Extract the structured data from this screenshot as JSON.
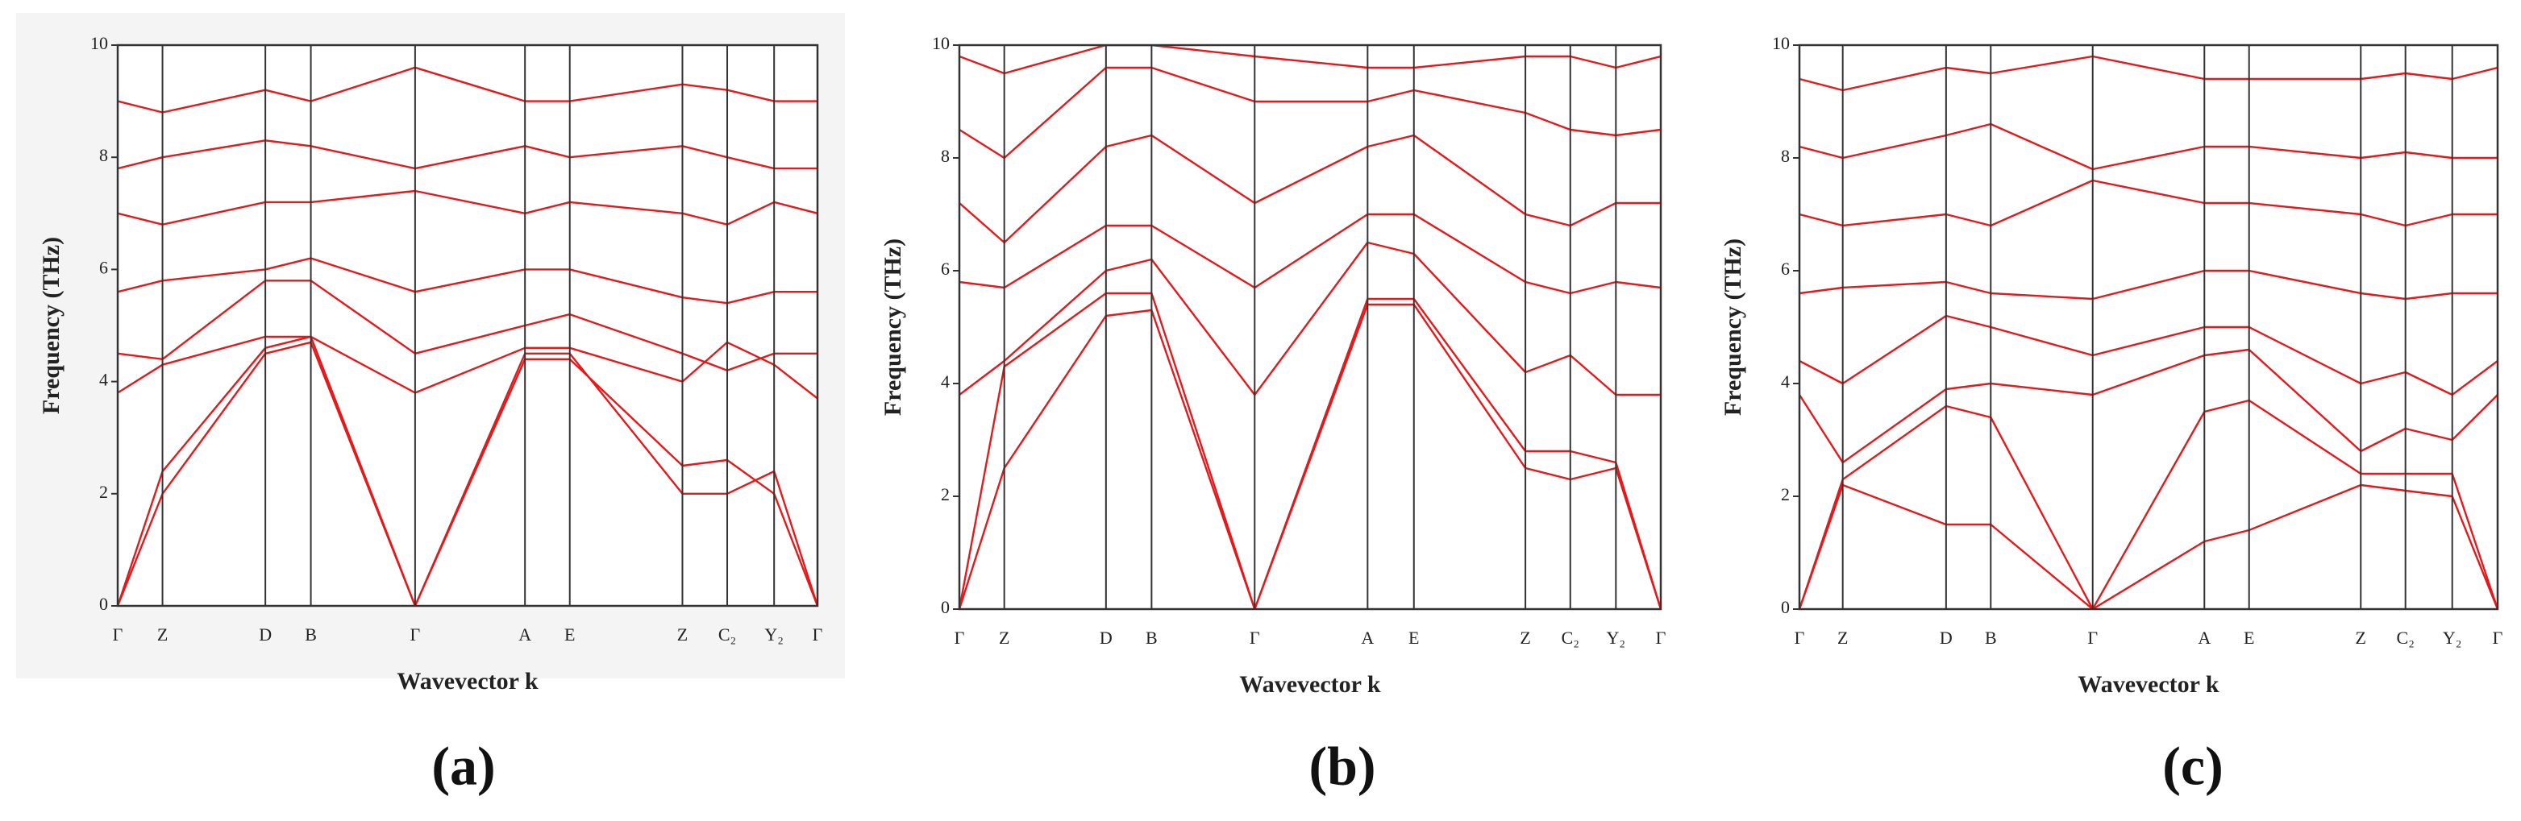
{
  "chart_data": [
    {
      "type": "line",
      "caption": "(a)",
      "xlabel": "Wavevector k",
      "ylabel": "Frequency (THz)",
      "xlim": [
        0,
        1
      ],
      "ylim": [
        0,
        10
      ],
      "yticks": [
        0,
        2,
        4,
        6,
        8,
        10
      ],
      "xticks": [
        {
          "value": 0,
          "label": "Γ"
        },
        {
          "value": 0.064,
          "label": "Z"
        },
        {
          "value": 0.211,
          "label": "D"
        },
        {
          "value": 0.276,
          "label": "B"
        },
        {
          "value": 0.425,
          "label": "Γ"
        },
        {
          "value": 0.582,
          "label": "A"
        },
        {
          "value": 0.646,
          "label": "E"
        },
        {
          "value": 0.807,
          "label": "Z"
        },
        {
          "value": 0.871,
          "label": "C₂"
        },
        {
          "value": 0.938,
          "label": "Y₂"
        },
        {
          "value": 1,
          "label": "Γ"
        }
      ],
      "x": [
        0,
        0.064,
        0.211,
        0.276,
        0.425,
        0.582,
        0.646,
        0.807,
        0.871,
        0.938,
        1
      ],
      "color": "#e31a1c",
      "background": "#f4f4f4",
      "series": [
        {
          "values": [
            0,
            2.0,
            4.5,
            4.7,
            0,
            4.5,
            4.5,
            2.0,
            2.0,
            2.4,
            0
          ]
        },
        {
          "values": [
            0,
            2.4,
            4.6,
            4.8,
            0,
            4.4,
            4.4,
            2.5,
            2.6,
            2.0,
            0
          ]
        },
        {
          "values": [
            3.8,
            4.3,
            4.8,
            4.8,
            3.8,
            4.6,
            4.6,
            4.0,
            4.7,
            4.3,
            3.7
          ]
        },
        {
          "values": [
            4.5,
            4.4,
            5.8,
            5.8,
            4.5,
            5.0,
            5.2,
            4.5,
            4.2,
            4.5,
            4.5
          ]
        },
        {
          "values": [
            5.6,
            5.8,
            6.0,
            6.2,
            5.6,
            6.0,
            6.0,
            5.5,
            5.4,
            5.6,
            5.6
          ]
        },
        {
          "values": [
            7.0,
            6.8,
            7.2,
            7.2,
            7.4,
            7.0,
            7.2,
            7.0,
            6.8,
            7.2,
            7.0
          ]
        },
        {
          "values": [
            7.8,
            8.0,
            8.3,
            8.2,
            7.8,
            8.2,
            8.0,
            8.2,
            8.0,
            7.8,
            7.8
          ]
        },
        {
          "values": [
            9.0,
            8.8,
            9.2,
            9.0,
            9.6,
            9.0,
            9.0,
            9.3,
            9.2,
            9.0,
            9.0
          ]
        }
      ]
    },
    {
      "type": "line",
      "caption": "(b)",
      "xlabel": "Wavevector k",
      "ylabel": "Frequency (THz)",
      "xlim": [
        0,
        1
      ],
      "ylim": [
        0,
        10
      ],
      "yticks": [
        0,
        2,
        4,
        6,
        8,
        10
      ],
      "xticks": [
        {
          "value": 0,
          "label": "Γ"
        },
        {
          "value": 0.064,
          "label": "Z"
        },
        {
          "value": 0.209,
          "label": "D"
        },
        {
          "value": 0.274,
          "label": "B"
        },
        {
          "value": 0.421,
          "label": "Γ"
        },
        {
          "value": 0.582,
          "label": "A"
        },
        {
          "value": 0.648,
          "label": "E"
        },
        {
          "value": 0.807,
          "label": "Z"
        },
        {
          "value": 0.871,
          "label": "C₂"
        },
        {
          "value": 0.936,
          "label": "Y₂"
        },
        {
          "value": 1,
          "label": "Γ"
        }
      ],
      "x": [
        0,
        0.064,
        0.209,
        0.274,
        0.421,
        0.582,
        0.648,
        0.807,
        0.871,
        0.936,
        1
      ],
      "color": "#e31a1c",
      "background": "#ffffff",
      "series": [
        {
          "values": [
            0,
            2.5,
            5.2,
            5.3,
            0,
            5.4,
            5.4,
            2.5,
            2.3,
            2.5,
            0
          ]
        },
        {
          "values": [
            0,
            4.3,
            5.6,
            5.6,
            0,
            5.5,
            5.5,
            2.8,
            2.8,
            2.6,
            0
          ]
        },
        {
          "values": [
            3.8,
            4.4,
            6.0,
            6.2,
            3.8,
            6.5,
            6.3,
            4.2,
            4.5,
            3.8,
            3.8
          ]
        },
        {
          "values": [
            5.8,
            5.7,
            6.8,
            6.8,
            5.7,
            7.0,
            7.0,
            5.8,
            5.6,
            5.8,
            5.7
          ]
        },
        {
          "values": [
            7.2,
            6.5,
            8.2,
            8.4,
            7.2,
            8.2,
            8.4,
            7.0,
            6.8,
            7.2,
            7.2
          ]
        },
        {
          "values": [
            8.5,
            8.0,
            9.6,
            9.6,
            9.0,
            9.0,
            9.2,
            8.8,
            8.5,
            8.4,
            8.5
          ]
        },
        {
          "values": [
            9.8,
            9.5,
            10,
            10,
            9.8,
            9.6,
            9.6,
            9.8,
            9.8,
            9.6,
            9.8
          ]
        }
      ]
    },
    {
      "type": "line",
      "caption": "(c)",
      "xlabel": "Wavevector k",
      "ylabel": "Frequency (THz)",
      "xlim": [
        0,
        1
      ],
      "ylim": [
        0,
        10
      ],
      "yticks": [
        0,
        2,
        4,
        6,
        8,
        10
      ],
      "xticks": [
        {
          "value": 0,
          "label": "Γ"
        },
        {
          "value": 0.062,
          "label": "Z"
        },
        {
          "value": 0.21,
          "label": "D"
        },
        {
          "value": 0.274,
          "label": "B"
        },
        {
          "value": 0.42,
          "label": "Γ"
        },
        {
          "value": 0.58,
          "label": "A"
        },
        {
          "value": 0.644,
          "label": "E"
        },
        {
          "value": 0.804,
          "label": "Z"
        },
        {
          "value": 0.868,
          "label": "C₂"
        },
        {
          "value": 0.935,
          "label": "Y₂"
        },
        {
          "value": 1,
          "label": "Γ"
        }
      ],
      "x": [
        0,
        0.062,
        0.21,
        0.274,
        0.42,
        0.58,
        0.644,
        0.804,
        0.868,
        0.935,
        1
      ],
      "color": "#e31a1c",
      "background": "#ffffff",
      "series": [
        {
          "values": [
            0,
            2.2,
            1.5,
            1.5,
            0,
            1.2,
            1.4,
            2.2,
            2.1,
            2.0,
            0
          ]
        },
        {
          "values": [
            0,
            2.3,
            3.6,
            3.4,
            0,
            3.5,
            3.7,
            2.4,
            2.4,
            2.4,
            0
          ]
        },
        {
          "values": [
            3.8,
            2.6,
            3.9,
            4.0,
            3.8,
            4.5,
            4.6,
            2.8,
            3.2,
            3.0,
            3.8
          ]
        },
        {
          "values": [
            4.4,
            4.0,
            5.2,
            5.0,
            4.5,
            5.0,
            5.0,
            4.0,
            4.2,
            3.8,
            4.4
          ]
        },
        {
          "values": [
            5.6,
            5.7,
            5.8,
            5.6,
            5.5,
            6.0,
            6.0,
            5.6,
            5.5,
            5.6,
            5.6
          ]
        },
        {
          "values": [
            7.0,
            6.8,
            7.0,
            6.8,
            7.6,
            7.2,
            7.2,
            7.0,
            6.8,
            7.0,
            7.0
          ]
        },
        {
          "values": [
            8.2,
            8.0,
            8.4,
            8.6,
            7.8,
            8.2,
            8.2,
            8.0,
            8.1,
            8.0,
            8.0
          ]
        },
        {
          "values": [
            9.4,
            9.2,
            9.6,
            9.5,
            9.8,
            9.4,
            9.4,
            9.4,
            9.5,
            9.4,
            9.6
          ]
        }
      ]
    }
  ]
}
